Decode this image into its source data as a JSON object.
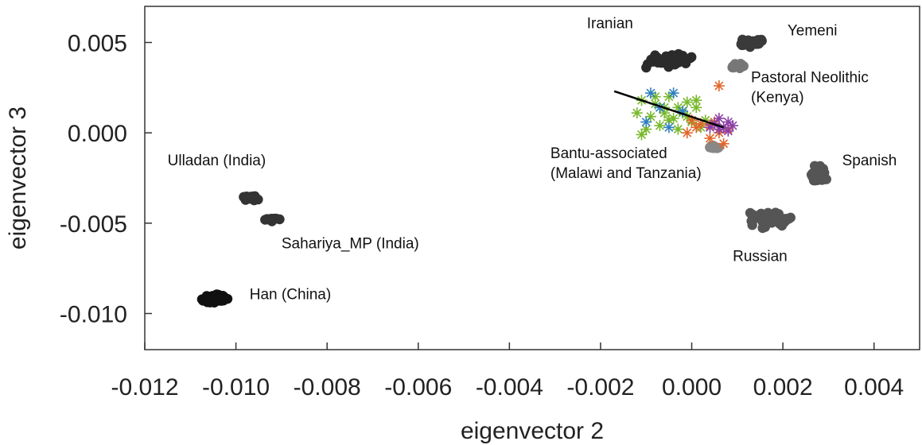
{
  "chart_data": {
    "type": "scatter",
    "title": "",
    "xlabel": "eigenvector 2",
    "ylabel": "eigenvector 3",
    "xlim": [
      -0.012,
      0.005
    ],
    "ylim": [
      -0.012,
      0.007
    ],
    "xticks": [
      -0.012,
      -0.01,
      -0.008,
      -0.006,
      -0.004,
      -0.002,
      0.0,
      0.002,
      0.004
    ],
    "xtick_labels": [
      "-0.012",
      "-0.010",
      "-0.008",
      "-0.006",
      "-0.004",
      "-0.002",
      "0.000",
      "0.002",
      "0.004"
    ],
    "yticks": [
      0.005,
      0.0,
      -0.005,
      -0.01
    ],
    "ytick_labels": [
      "0.005",
      "0.000",
      "-0.005",
      "-0.010"
    ],
    "grid": false,
    "clusters": [
      {
        "label": "Iranian",
        "color": "#2b2b2b",
        "center": [
          -0.0005,
          0.004
        ],
        "spread": [
          0.0006,
          0.00045
        ],
        "n": 55,
        "label_lines": [
          "Iranian"
        ],
        "label_at": [
          -0.0023,
          0.0058
        ]
      },
      {
        "label": "Yemeni",
        "color": "#3a3a3a",
        "center": [
          0.0013,
          0.005
        ],
        "spread": [
          0.0004,
          0.0003
        ],
        "n": 30,
        "label_lines": [
          "Yemeni"
        ],
        "label_at": [
          0.0021,
          0.0054
        ]
      },
      {
        "label": "Pastoral Neolithic (Kenya)",
        "color": "#777777",
        "center": [
          0.001,
          0.0037
        ],
        "spread": [
          0.0002,
          0.0003
        ],
        "n": 14,
        "label_lines": [
          "Pastoral Neolithic",
          "(Kenya)"
        ],
        "label_at": [
          0.0013,
          0.0028
        ]
      },
      {
        "label": "Spanish",
        "color": "#555555",
        "center": [
          0.0028,
          -0.0023
        ],
        "spread": [
          0.0002,
          0.0006
        ],
        "n": 60,
        "label_lines": [
          "Spanish"
        ],
        "label_at": [
          0.0033,
          -0.0018
        ]
      },
      {
        "label": "Russian",
        "color": "#555555",
        "center": [
          0.0017,
          -0.0048
        ],
        "spread": [
          0.0007,
          0.0006
        ],
        "n": 50,
        "label_lines": [
          "Russian"
        ],
        "label_at": [
          0.0009,
          -0.0071
        ]
      },
      {
        "label": "Ulladan (India)",
        "color": "#333333",
        "center": [
          -0.0097,
          -0.0036
        ],
        "spread": [
          0.0003,
          0.00025
        ],
        "n": 16,
        "label_lines": [
          "Ulladan (India)"
        ],
        "label_at": [
          -0.0115,
          -0.0018
        ]
      },
      {
        "label": "Sahariya_MP (India)",
        "color": "#333333",
        "center": [
          -0.0092,
          -0.0048
        ],
        "spread": [
          0.0002,
          0.00015
        ],
        "n": 12,
        "label_lines": [
          "Sahariya_MP (India)"
        ],
        "label_at": [
          -0.009,
          -0.0064
        ]
      },
      {
        "label": "Han (China)",
        "color": "#111111",
        "center": [
          -0.0105,
          -0.0092
        ],
        "spread": [
          0.0004,
          0.0003
        ],
        "n": 80,
        "label_lines": [
          "Han (China)"
        ],
        "label_at": [
          -0.0097,
          -0.0092
        ]
      },
      {
        "label": "Bantu-associated (Malawi and Tanzania)",
        "color": "#888888",
        "center": [
          0.0005,
          -0.0008
        ],
        "spread": [
          0.0002,
          0.00015
        ],
        "n": 10,
        "label_lines": [
          "Bantu-associated",
          "(Malawi and Tanzania)"
        ],
        "label_at": [
          -0.0031,
          -0.0014
        ]
      }
    ],
    "star_series": [
      {
        "color": "#77b82a",
        "points": [
          [
            -0.0011,
            0.0018
          ],
          [
            -0.0008,
            0.0016
          ],
          [
            -0.0005,
            0.002
          ],
          [
            -0.0003,
            0.0014
          ],
          [
            -0.0006,
            0.0011
          ],
          [
            -0.0009,
            0.0009
          ],
          [
            -0.0012,
            0.0011
          ],
          [
            -0.0004,
            0.0008
          ],
          [
            -0.0002,
            0.0011
          ],
          [
            -0.0001,
            0.0017
          ],
          [
            0.0,
            0.0006
          ],
          [
            -0.0007,
            0.0004
          ],
          [
            -0.001,
            0.0002
          ],
          [
            -0.0003,
            0.0002
          ],
          [
            -0.0006,
            0.0014
          ],
          [
            -0.0001,
            0.0009
          ],
          [
            0.0001,
            0.0014
          ],
          [
            0.0002,
            0.0003
          ],
          [
            -0.0005,
            0.0007
          ],
          [
            -0.0011,
            -0.0001
          ],
          [
            -0.0008,
            0.002
          ],
          [
            0.0003,
            0.0007
          ],
          [
            0.0001,
            0.0018
          ]
        ]
      },
      {
        "color": "#2e7fc0",
        "points": [
          [
            -0.0009,
            0.0022
          ],
          [
            -0.0004,
            0.0022
          ],
          [
            -0.001,
            0.0006
          ],
          [
            -0.0007,
            0.0014
          ],
          [
            -0.0002,
            0.0012
          ],
          [
            -0.0005,
            0.0003
          ]
        ]
      },
      {
        "color": "#e2652a",
        "points": [
          [
            0.0006,
            0.0026
          ],
          [
            0.0,
            0.0007
          ],
          [
            0.0004,
            0.0004
          ],
          [
            0.0008,
            0.0002
          ],
          [
            0.0006,
            0.0
          ],
          [
            0.0004,
            -0.0003
          ],
          [
            0.0002,
            0.0005
          ],
          [
            0.0007,
            -0.0006
          ],
          [
            -0.0001,
            0.0
          ],
          [
            0.0001,
            0.0003
          ],
          [
            0.0005,
            0.0006
          ]
        ]
      },
      {
        "color": "#8a3fa8",
        "points": [
          [
            0.0005,
            0.0005
          ],
          [
            0.0007,
            0.0003
          ],
          [
            0.0008,
            0.0006
          ],
          [
            0.0006,
            0.0002
          ],
          [
            0.0009,
            0.0004
          ],
          [
            0.0004,
            0.0003
          ],
          [
            0.0006,
            0.0008
          ],
          [
            0.0008,
            0.0001
          ]
        ]
      }
    ],
    "trend_line": [
      [
        -0.0017,
        0.0023
      ],
      [
        0.0007,
        0.0003
      ]
    ]
  }
}
